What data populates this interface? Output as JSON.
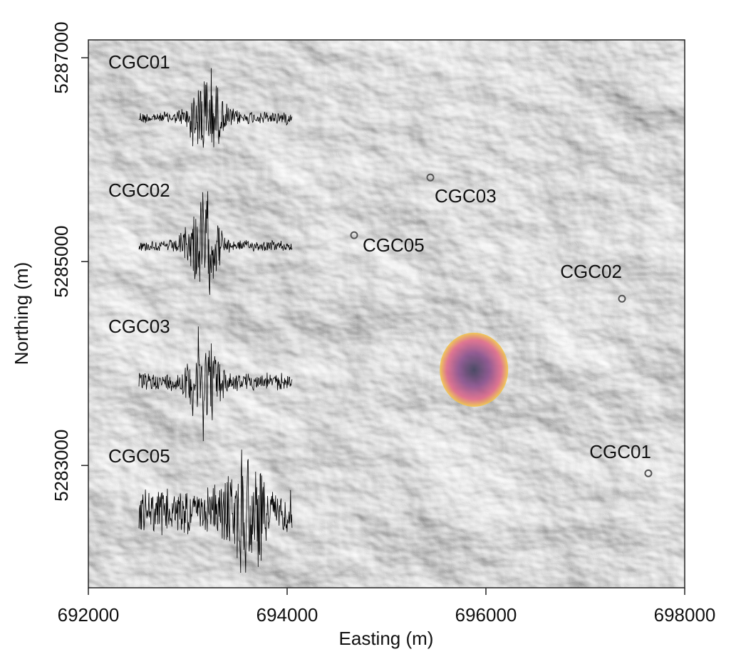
{
  "chart_data": {
    "type": "scatter",
    "x_label": "Easting (m)",
    "y_label": "Northing (m)",
    "xlim": [
      692000,
      698000
    ],
    "ylim": [
      5281800,
      5287175
    ],
    "xticks": [
      692000,
      694000,
      696000,
      698000
    ],
    "yticks": [
      5283000,
      5285000,
      5287000
    ],
    "series": [
      {
        "names": [
          "CGC03",
          "CGC05",
          "CGC02",
          "CGC01"
        ],
        "x": [
          695441,
          694674,
          697369,
          697634
        ],
        "values": [
          5285825,
          5285259,
          5284636,
          5282923
        ],
        "color": "#555555"
      }
    ],
    "source": {
      "x": 695880,
      "y": 5283940
    },
    "traces": [
      "CGC01",
      "CGC02",
      "CGC03",
      "CGC05"
    ]
  }
}
